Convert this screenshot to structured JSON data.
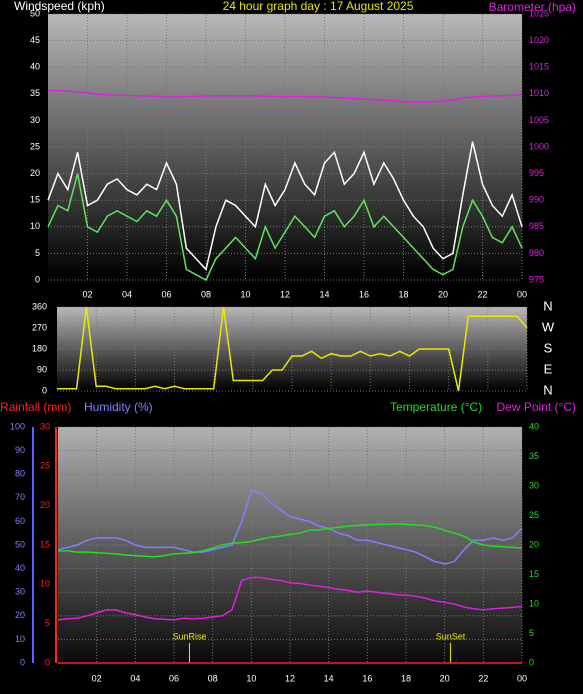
{
  "chart_data": [
    {
      "type": "line",
      "title": "24 hour graph day : 17 August 2025",
      "ylabel": "Windspeed (kph)",
      "y2label": "Barometer (hpa)",
      "x": [
        0,
        0.5,
        1,
        1.5,
        2,
        2.5,
        3,
        3.5,
        4,
        4.5,
        5,
        5.5,
        6,
        6.5,
        7,
        7.5,
        8,
        8.5,
        9,
        9.5,
        10,
        10.5,
        11,
        11.5,
        12,
        12.5,
        13,
        13.5,
        14,
        14.5,
        15,
        15.5,
        16,
        16.5,
        17,
        17.5,
        18,
        18.5,
        19,
        19.5,
        20,
        20.5,
        21,
        21.5,
        22,
        22.5,
        23,
        23.5,
        24
      ],
      "series": [
        {
          "color": "#ffffff",
          "values": [
            15,
            20,
            17,
            24,
            14,
            15,
            18,
            19,
            17,
            16,
            18,
            17,
            22,
            18,
            6,
            4,
            2,
            10,
            15,
            14,
            12,
            10,
            18,
            14,
            17,
            22,
            18,
            16,
            22,
            24,
            18,
            20,
            24,
            18,
            22,
            19,
            15,
            12,
            10,
            6,
            4,
            5,
            16,
            26,
            18,
            14,
            12,
            16,
            10
          ]
        },
        {
          "color": "#5fe35f",
          "values": [
            10,
            14,
            13,
            20,
            10,
            9,
            12,
            13,
            12,
            11,
            13,
            12,
            15,
            12,
            2,
            1,
            0,
            4,
            6,
            8,
            6,
            4,
            10,
            6,
            9,
            12,
            10,
            8,
            12,
            13,
            10,
            12,
            15,
            10,
            12,
            10,
            8,
            6,
            4,
            2,
            1,
            2,
            10,
            15,
            12,
            8,
            7,
            10,
            6
          ]
        },
        {
          "color": "#e020e0",
          "axis": "y2",
          "values": [
            1010.6,
            1010.6,
            1010.5,
            1010.4,
            1010.2,
            1009.9,
            1009.8,
            1009.7,
            1009.7,
            1009.6,
            1009.6,
            1009.5,
            1009.4,
            1009.4,
            1009.5,
            1009.5,
            1009.6,
            1009.6,
            1009.6,
            1009.6,
            1009.6,
            1009.6,
            1009.5,
            1009.5,
            1009.5,
            1009.5,
            1009.5,
            1009.4,
            1009.4,
            1009.3,
            1009.2,
            1009.1,
            1009.0,
            1008.9,
            1008.8,
            1008.7,
            1008.5,
            1008.4,
            1008.4,
            1008.5,
            1008.7,
            1008.9,
            1009.2,
            1009.4,
            1009.5,
            1009.6,
            1009.6,
            1009.7,
            1009.8
          ]
        }
      ],
      "xlim": [
        0,
        24
      ],
      "xticks": [
        {
          "value": 2,
          "label": "02"
        },
        {
          "value": 4,
          "label": "04"
        },
        {
          "value": 6,
          "label": "06"
        },
        {
          "value": 8,
          "label": "08"
        },
        10,
        12,
        14,
        16,
        18,
        20,
        22,
        {
          "value": 24,
          "label": "00"
        }
      ],
      "ylim": [
        0,
        50
      ],
      "yticks": [
        0,
        5,
        10,
        15,
        20,
        25,
        30,
        35,
        40,
        45,
        50
      ],
      "y2lim": [
        975,
        1025
      ],
      "y2ticks": [
        975,
        980,
        985,
        990,
        995,
        1000,
        1005,
        1010,
        1015,
        1020,
        1025
      ],
      "grid": true
    },
    {
      "type": "line",
      "x": [
        0,
        0.5,
        1,
        1.5,
        2,
        2.5,
        3,
        3.5,
        4,
        4.5,
        5,
        5.5,
        6,
        6.5,
        7,
        7.5,
        8,
        8.5,
        9,
        9.5,
        10,
        10.5,
        11,
        11.5,
        12,
        12.5,
        13,
        13.5,
        14,
        14.5,
        15,
        15.5,
        16,
        16.5,
        17,
        17.5,
        18,
        18.5,
        19,
        19.5,
        20,
        20.5,
        21,
        21.5,
        22,
        22.5,
        23,
        23.5,
        24
      ],
      "series": [
        {
          "color": "#e8e800",
          "values": [
            10,
            10,
            10,
            360,
            20,
            20,
            10,
            10,
            10,
            10,
            20,
            10,
            20,
            10,
            10,
            10,
            10,
            360,
            45,
            45,
            45,
            45,
            90,
            90,
            150,
            150,
            170,
            140,
            160,
            150,
            150,
            170,
            150,
            160,
            150,
            170,
            150,
            180,
            180,
            180,
            180,
            0,
            320,
            320,
            320,
            320,
            320,
            320,
            270
          ]
        }
      ],
      "xlim": [
        0,
        24
      ],
      "xticks": [
        {
          "value": 2,
          "label": "02"
        },
        {
          "value": 4,
          "label": "04"
        },
        {
          "value": 6,
          "label": "06"
        },
        {
          "value": 8,
          "label": "08"
        },
        10,
        12,
        14,
        16,
        18,
        20,
        22,
        {
          "value": 24,
          "label": "00"
        }
      ],
      "ylim": [
        0,
        360
      ],
      "yticks": [
        0,
        90,
        180,
        270,
        360
      ],
      "y2lim": [
        0,
        360
      ],
      "y2ticks": [
        {
          "value": 360,
          "label": "N"
        },
        {
          "value": 270,
          "label": "W"
        },
        {
          "value": 180,
          "label": "S"
        },
        {
          "value": 90,
          "label": "E"
        },
        {
          "value": 0,
          "label": "N"
        }
      ],
      "grid": true
    },
    {
      "type": "line",
      "x": [
        0,
        0.5,
        1,
        1.5,
        2,
        2.5,
        3,
        3.5,
        4,
        4.5,
        5,
        5.5,
        6,
        6.5,
        7,
        7.5,
        8,
        8.5,
        9,
        9.5,
        10,
        10.5,
        11,
        11.5,
        12,
        12.5,
        13,
        13.5,
        14,
        14.5,
        15,
        15.5,
        16,
        16.5,
        17,
        17.5,
        18,
        18.5,
        19,
        19.5,
        20,
        20.5,
        21,
        21.5,
        22,
        22.5,
        23,
        23.5,
        24
      ],
      "series": [
        {
          "name": "Rainfall (mm)",
          "color": "#ff2020",
          "axis": "y3",
          "values": [
            0,
            0,
            0,
            0,
            0,
            0,
            0,
            0,
            0,
            0,
            0,
            0,
            0,
            0,
            0,
            0,
            0,
            0,
            0,
            0,
            0,
            0,
            0,
            0,
            0,
            0,
            0,
            0,
            0,
            0,
            0,
            0,
            0,
            0,
            0,
            0,
            0,
            0,
            0,
            0,
            0,
            0,
            0,
            0,
            0,
            0,
            0,
            0,
            0
          ]
        },
        {
          "name": "Humidity (%)",
          "color": "#8080ff",
          "values": [
            48,
            49,
            50,
            52,
            53,
            53,
            53,
            52,
            50,
            49,
            49,
            49,
            49,
            48,
            47,
            47,
            48,
            49,
            50,
            60,
            73,
            72,
            68,
            65,
            62,
            61,
            60,
            58,
            57,
            55,
            54,
            52,
            52,
            51,
            50,
            49,
            48,
            47,
            45,
            43,
            42,
            43,
            48,
            52,
            52,
            53,
            52,
            53,
            57
          ]
        },
        {
          "name": "Temperature (°C)",
          "color": "#22dd22",
          "axis": "y2",
          "values": [
            19,
            19,
            18.8,
            18.8,
            18.7,
            18.6,
            18.5,
            18.3,
            18.2,
            18.1,
            18,
            18.2,
            18.5,
            18.6,
            18.7,
            19,
            19.5,
            20,
            20.3,
            20.4,
            20.6,
            21,
            21.3,
            21.5,
            21.8,
            22,
            22.5,
            22.6,
            22.8,
            23,
            23.2,
            23.3,
            23.4,
            23.5,
            23.5,
            23.6,
            23.5,
            23.4,
            23.3,
            23,
            22.5,
            22,
            21.5,
            20.5,
            20,
            19.8,
            19.7,
            19.6,
            19.5
          ]
        },
        {
          "name": "Dew Point (°C)",
          "color": "#e020e0",
          "axis": "y2",
          "values": [
            7.3,
            7.5,
            7.6,
            8,
            8.5,
            9,
            9,
            8.5,
            8.2,
            7.8,
            7.5,
            7.4,
            7.3,
            7.6,
            7.5,
            7.6,
            7.8,
            8,
            9,
            14,
            14.5,
            14.5,
            14.2,
            14,
            13.6,
            13.5,
            13.2,
            13,
            12.8,
            12.5,
            12.3,
            12,
            12.2,
            12,
            11.8,
            11.6,
            11.5,
            11.3,
            11,
            10.5,
            10.3,
            10,
            9.5,
            9.2,
            9,
            9.2,
            9.3,
            9.4,
            9.6
          ]
        }
      ],
      "xlim": [
        0,
        24
      ],
      "xticks": [
        {
          "value": 2,
          "label": "02"
        },
        {
          "value": 4,
          "label": "04"
        },
        {
          "value": 6,
          "label": "06"
        },
        {
          "value": 8,
          "label": "08"
        },
        10,
        12,
        14,
        16,
        18,
        20,
        22,
        {
          "value": 24,
          "label": "00"
        }
      ],
      "ylim": [
        0,
        100
      ],
      "yticks": [
        0,
        10,
        20,
        30,
        40,
        50,
        60,
        70,
        80,
        90,
        100
      ],
      "y2lim": [
        0,
        40
      ],
      "y2ticks": [
        0,
        5,
        10,
        15,
        20,
        25,
        30,
        35,
        40
      ],
      "y3lim": [
        0,
        30
      ],
      "y3ticks": [
        0,
        5,
        10,
        15,
        20,
        25,
        30
      ],
      "annotations": [
        {
          "text": "SunRise",
          "x": 6.8
        },
        {
          "text": "SunSet",
          "x": 20.3
        }
      ],
      "grid": true
    }
  ]
}
